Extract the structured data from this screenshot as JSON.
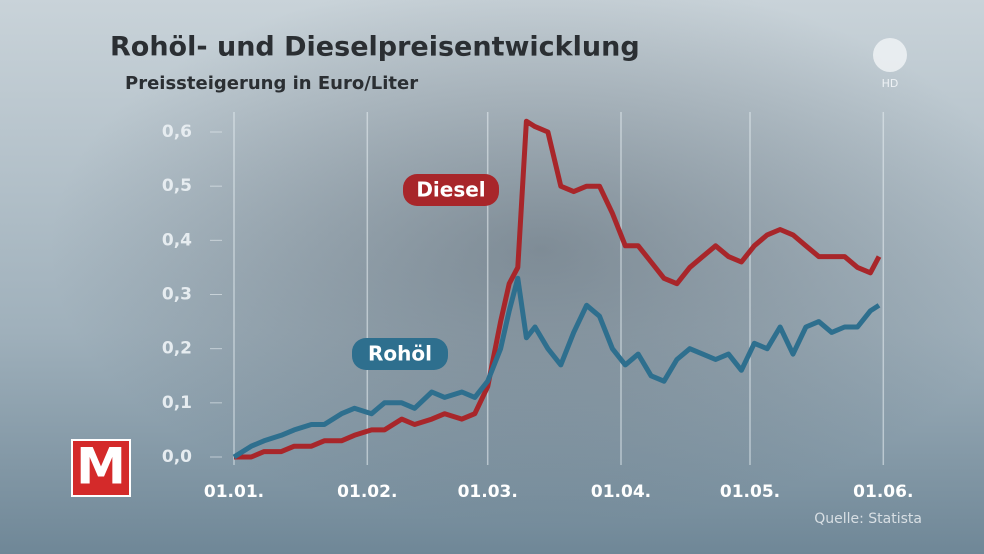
{
  "chart_data": {
    "type": "line",
    "title": "Rohöl- und Dieselpreisentwicklung",
    "subtitle": "Preissteigerung in Euro/Liter",
    "x": [
      "01.01.",
      "05.01.",
      "08.01.",
      "12.01.",
      "15.01.",
      "19.01.",
      "22.01.",
      "26.01.",
      "29.01.",
      "02.02.",
      "05.02.",
      "09.02.",
      "12.02.",
      "16.02.",
      "19.02.",
      "23.02.",
      "26.02.",
      "01.03.",
      "04.03.",
      "06.03.",
      "08.03.",
      "10.03.",
      "12.03.",
      "15.03.",
      "18.03.",
      "21.03.",
      "24.03.",
      "27.03.",
      "30.03.",
      "02.04.",
      "05.04.",
      "08.04.",
      "11.04.",
      "14.04.",
      "17.04.",
      "20.04.",
      "23.04.",
      "26.04.",
      "29.04.",
      "02.05.",
      "05.05.",
      "08.05.",
      "11.05.",
      "14.05.",
      "17.05.",
      "20.05.",
      "23.05.",
      "26.05.",
      "29.05.",
      "31.05."
    ],
    "series": [
      {
        "name": "Diesel",
        "color": "#a8262a",
        "values": [
          0.0,
          0.0,
          0.01,
          0.01,
          0.02,
          0.02,
          0.03,
          0.03,
          0.04,
          0.05,
          0.05,
          0.07,
          0.06,
          0.07,
          0.08,
          0.07,
          0.08,
          0.13,
          0.25,
          0.32,
          0.35,
          0.62,
          0.61,
          0.6,
          0.5,
          0.49,
          0.5,
          0.5,
          0.45,
          0.39,
          0.39,
          0.36,
          0.33,
          0.32,
          0.35,
          0.37,
          0.39,
          0.37,
          0.36,
          0.39,
          0.41,
          0.42,
          0.41,
          0.39,
          0.37,
          0.37,
          0.37,
          0.35,
          0.34,
          0.37
        ]
      },
      {
        "name": "Rohöl",
        "color": "#2e6f8e",
        "values": [
          0.0,
          0.02,
          0.03,
          0.04,
          0.05,
          0.06,
          0.06,
          0.08,
          0.09,
          0.08,
          0.1,
          0.1,
          0.09,
          0.12,
          0.11,
          0.12,
          0.11,
          0.14,
          0.2,
          0.27,
          0.33,
          0.22,
          0.24,
          0.2,
          0.17,
          0.23,
          0.28,
          0.26,
          0.2,
          0.17,
          0.19,
          0.15,
          0.14,
          0.18,
          0.2,
          0.19,
          0.18,
          0.19,
          0.16,
          0.21,
          0.2,
          0.24,
          0.19,
          0.24,
          0.25,
          0.23,
          0.24,
          0.24,
          0.27,
          0.28
        ]
      }
    ],
    "ylim": [
      0,
      0.6
    ],
    "yticks": [
      {
        "value": 0,
        "label": "0,0"
      },
      {
        "value": 0.1,
        "label": "0,1"
      },
      {
        "value": 0.2,
        "label": "0,2"
      },
      {
        "value": 0.3,
        "label": "0,3"
      },
      {
        "value": 0.4,
        "label": "0,4"
      },
      {
        "value": 0.5,
        "label": "0,5"
      },
      {
        "value": 0.6,
        "label": "0,6"
      }
    ],
    "xticks": [
      "01.01.",
      "01.02.",
      "01.03.",
      "01.04.",
      "01.05.",
      "01.06."
    ],
    "grid": true,
    "source": "Quelle: Statista",
    "channel_badge": "HD",
    "logo_text": "M"
  }
}
